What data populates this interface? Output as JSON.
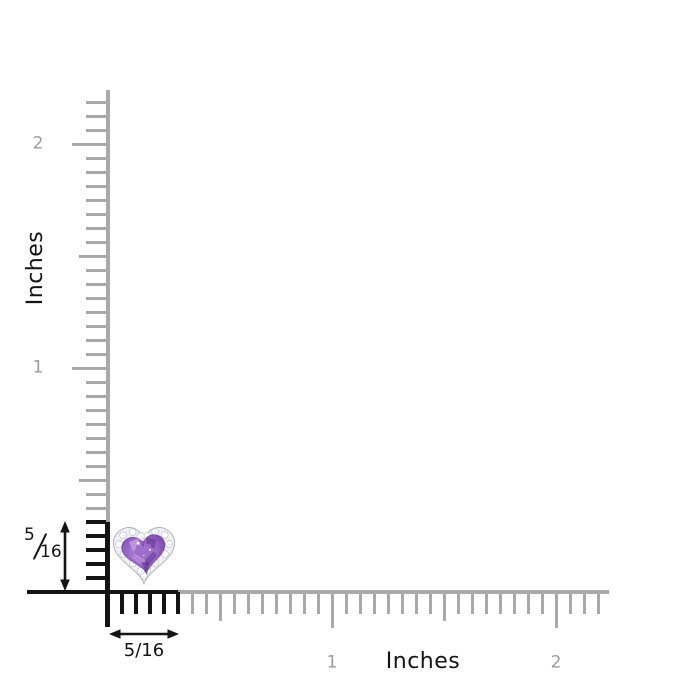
{
  "diagram": {
    "description": "heart-shaped amethyst halo stud shown against inch rulers",
    "background": "#ffffff"
  },
  "rulers": {
    "vertical": {
      "unit_label": "Inches",
      "mark_labels": [
        "1",
        "2"
      ]
    },
    "horizontal": {
      "unit_label": "Inches",
      "mark_labels": [
        "1",
        "2"
      ]
    }
  },
  "measurements": {
    "height": {
      "numerator": "5",
      "denominator": "16",
      "value": "5/16"
    },
    "width": {
      "value": "5/16"
    }
  },
  "jewel": {
    "name": "heart-amethyst-diamond-halo",
    "colors": {
      "amethyst_light": "#c09be2",
      "amethyst_mid": "#9c6ac9",
      "amethyst_dark": "#7b4cae",
      "amethyst_deep": "#61368f",
      "halo_fill": "#eef0f4",
      "halo_stroke": "#abaeb9",
      "diamond_fill": "#fdfdfe",
      "diamond_stroke": "#b7bac6"
    }
  },
  "colors": {
    "ruler_gray": "#a9a9a9",
    "ruler_label_gray": "#9b9b9b",
    "highlight_black": "#141414"
  }
}
